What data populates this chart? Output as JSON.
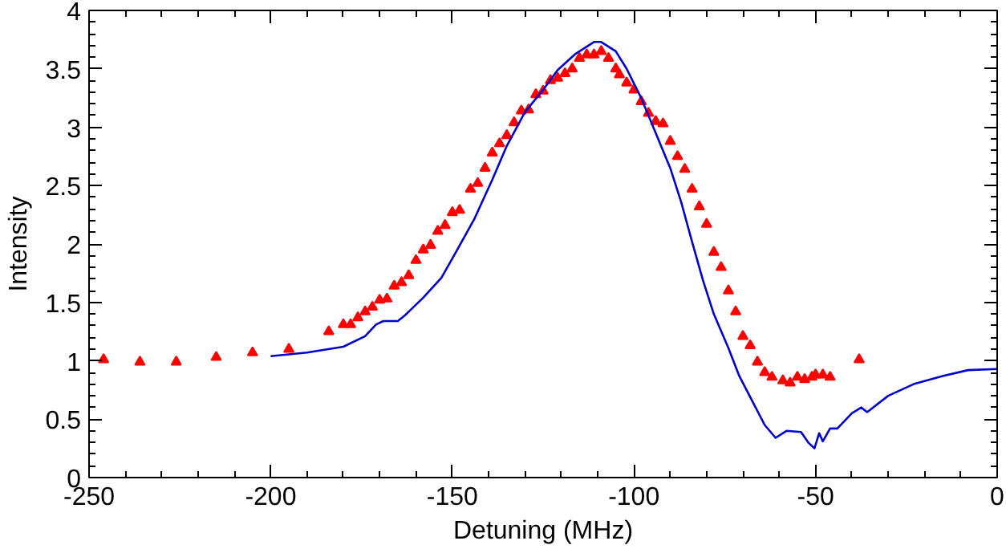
{
  "chart_data": {
    "type": "scatter",
    "xlabel": "Detuning (MHz)",
    "ylabel": "Intensity",
    "xlim": [
      -250,
      0
    ],
    "ylim": [
      0,
      4
    ],
    "xticks": [
      -250,
      -200,
      -150,
      -100,
      -50,
      0
    ],
    "yticks": [
      0,
      0.5,
      1,
      1.5,
      2,
      2.5,
      3,
      3.5,
      4
    ],
    "grid": false,
    "series": [
      {
        "marker": "triangle",
        "color": "#ff0000",
        "x": [
          -246,
          -236,
          -226,
          -215,
          -205,
          -195,
          -184,
          -180,
          -178,
          -176,
          -174,
          -172,
          -170,
          -168,
          -166,
          -164,
          -162,
          -160,
          -158,
          -156,
          -154,
          -152,
          -150,
          -148,
          -145,
          -143,
          -141,
          -139,
          -137,
          -135,
          -133,
          -131,
          -129,
          -127,
          -125,
          -123,
          -121,
          -119,
          -117,
          -115,
          -113,
          -111,
          -109,
          -107,
          -105,
          -104,
          -102,
          -100,
          -98,
          -96,
          -94,
          -92,
          -90,
          -88,
          -86,
          -84,
          -82,
          -80,
          -78,
          -76,
          -74,
          -72,
          -70,
          -68,
          -66,
          -64,
          -62,
          -59,
          -57,
          -55,
          -53,
          -51,
          -50,
          -48,
          -46,
          -38
        ],
        "values": [
          1.01,
          0.99,
          0.99,
          1.03,
          1.07,
          1.1,
          1.25,
          1.31,
          1.31,
          1.37,
          1.42,
          1.46,
          1.52,
          1.53,
          1.64,
          1.67,
          1.73,
          1.86,
          1.95,
          1.99,
          2.11,
          2.16,
          2.27,
          2.29,
          2.47,
          2.52,
          2.65,
          2.78,
          2.86,
          2.93,
          3.04,
          3.14,
          3.15,
          3.28,
          3.31,
          3.4,
          3.42,
          3.46,
          3.5,
          3.59,
          3.62,
          3.62,
          3.65,
          3.59,
          3.5,
          3.45,
          3.38,
          3.32,
          3.22,
          3.12,
          3.05,
          3.03,
          2.88,
          2.75,
          2.64,
          2.47,
          2.32,
          2.17,
          1.93,
          1.8,
          1.6,
          1.42,
          1.21,
          1.13,
          0.99,
          0.9,
          0.86,
          0.83,
          0.81,
          0.86,
          0.84,
          0.86,
          0.88,
          0.88,
          0.86,
          1.01
        ]
      },
      {
        "type": "line",
        "marker": "none",
        "line_style": "solid",
        "color": "#0000cc",
        "x": [
          -200,
          -190,
          -180,
          -174,
          -171,
          -169,
          -165,
          -163,
          -158,
          -153,
          -149,
          -144,
          -139,
          -135,
          -130,
          -125,
          -121,
          -116,
          -111,
          -109,
          -105,
          -102,
          -98,
          -94,
          -90,
          -87,
          -84,
          -81,
          -78,
          -74,
          -71,
          -67,
          -64,
          -61,
          -58,
          -54,
          -52,
          -50.3,
          -49,
          -48,
          -46,
          -44,
          -40,
          -37.4,
          -35.8,
          -30,
          -23,
          -15,
          -8,
          0
        ],
        "values": [
          1.04,
          1.07,
          1.12,
          1.21,
          1.31,
          1.34,
          1.34,
          1.39,
          1.54,
          1.71,
          1.93,
          2.21,
          2.55,
          2.84,
          3.13,
          3.32,
          3.49,
          3.63,
          3.73,
          3.73,
          3.65,
          3.5,
          3.25,
          2.95,
          2.65,
          2.36,
          2.02,
          1.69,
          1.4,
          1.11,
          0.87,
          0.63,
          0.45,
          0.34,
          0.4,
          0.39,
          0.3,
          0.25,
          0.38,
          0.31,
          0.42,
          0.42,
          0.55,
          0.6,
          0.56,
          0.7,
          0.8,
          0.87,
          0.92,
          0.93
        ]
      }
    ]
  }
}
